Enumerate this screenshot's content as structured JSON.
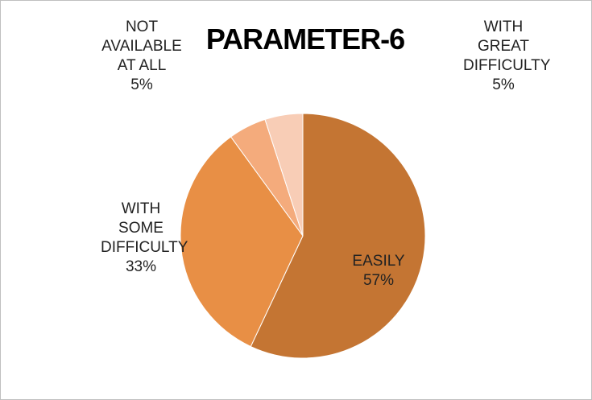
{
  "chart_data": {
    "type": "pie",
    "title": "PARAMETER-6",
    "categories": [
      "EASILY",
      "WITH SOME DIFFICULTY",
      "NOT AVAILABLE AT ALL",
      "WITH GREAT DIFFICULTY"
    ],
    "values": [
      57,
      33,
      5,
      5
    ],
    "value_labels": [
      "57%",
      "33%",
      "5%",
      "5%"
    ],
    "colors": [
      "#c47533",
      "#e88f45",
      "#f4ab7c",
      "#f8cdb6"
    ]
  }
}
